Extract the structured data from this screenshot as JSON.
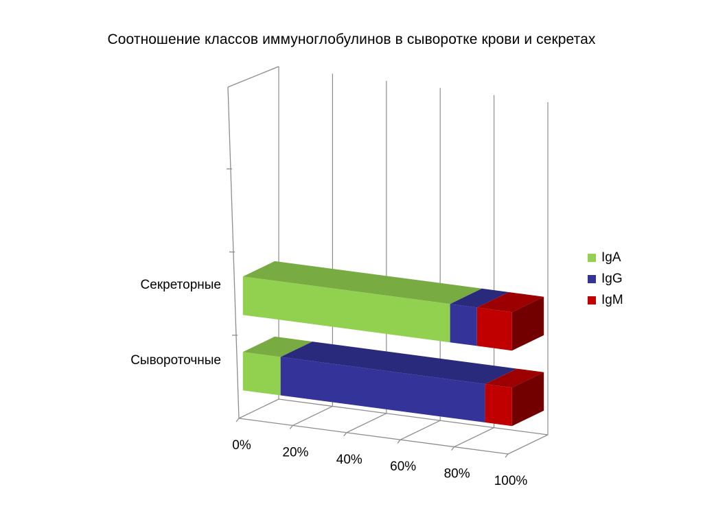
{
  "chart_data": {
    "type": "bar",
    "orientation": "horizontal",
    "stacked": "percent",
    "three_d": true,
    "title": "Соотношение классов иммуноглобулинов в сыворотке крови  и секретах",
    "categories": [
      "Секреторные",
      "Сывороточные"
    ],
    "series": [
      {
        "name": "IgA",
        "color": "#92d050",
        "values": [
          77,
          14
        ]
      },
      {
        "name": "IgG",
        "color": "#333399",
        "values": [
          10,
          76
        ]
      },
      {
        "name": "IgM",
        "color": "#c00000",
        "values": [
          13,
          10
        ]
      }
    ],
    "xaxis": {
      "ticks": [
        "0%",
        "20%",
        "40%",
        "60%",
        "80%",
        "100%"
      ],
      "range": [
        0,
        100
      ]
    },
    "grid": true,
    "legend_position": "right"
  }
}
